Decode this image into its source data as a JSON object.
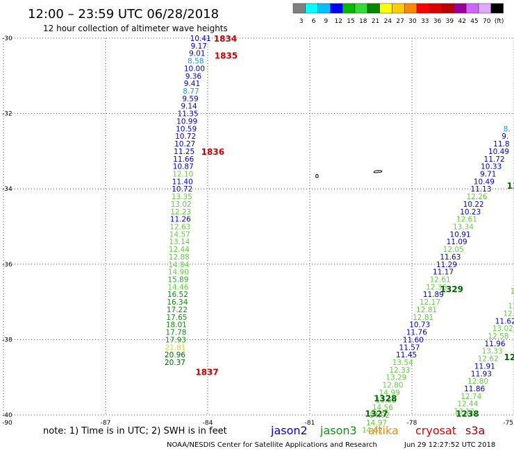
{
  "header": {
    "title": "12:00 – 23:59 UTC 06/28/2018",
    "subtitle": "12 hour collection of altimeter wave heights"
  },
  "legend": {
    "colors": [
      "#808080",
      "#00ffff",
      "#00c0ff",
      "#0000ff",
      "#00bb00",
      "#33dd33",
      "#008800",
      "#ffff00",
      "#ffcc00",
      "#ff8800",
      "#ff0000",
      "#dd0000",
      "#bb0000",
      "#990099",
      "#cc66ff",
      "#ddaaff",
      "#000000"
    ],
    "labels": [
      "3",
      "6",
      "9",
      "12",
      "15",
      "18",
      "21",
      "24",
      "27",
      "30",
      "33",
      "36",
      "39",
      "42",
      "45",
      "70",
      "(ft)"
    ]
  },
  "axes": {
    "lat_labels": [
      "-30",
      "-32",
      "-34",
      "-36",
      "-38",
      "-40"
    ],
    "lon_labels": [
      "-90",
      "-87",
      "-84",
      "-81",
      "-78",
      "-75"
    ]
  },
  "tracks": [
    {
      "name": "track-1",
      "points": [
        {
          "v": "10.41",
          "lon": -84.21,
          "lat": -30.0,
          "c": "#0000cc"
        },
        {
          "v": "9.17",
          "lon": -84.26,
          "lat": -30.2,
          "c": "#0000cc"
        },
        {
          "v": "9.01",
          "lon": -84.31,
          "lat": -30.4,
          "c": "#0000cc"
        },
        {
          "v": "8.58",
          "lon": -84.35,
          "lat": -30.6,
          "c": "#2299cc"
        },
        {
          "v": "10.00",
          "lon": -84.39,
          "lat": -30.8,
          "c": "#0000cc"
        },
        {
          "v": "9.36",
          "lon": -84.42,
          "lat": -31.0,
          "c": "#0000cc"
        },
        {
          "v": "9.41",
          "lon": -84.46,
          "lat": -31.2,
          "c": "#0000cc"
        },
        {
          "v": "8.77",
          "lon": -84.49,
          "lat": -31.4,
          "c": "#2299cc"
        },
        {
          "v": "9.59",
          "lon": -84.51,
          "lat": -31.6,
          "c": "#0000cc"
        },
        {
          "v": "9.14",
          "lon": -84.55,
          "lat": -31.8,
          "c": "#0000cc"
        },
        {
          "v": "11.35",
          "lon": -84.58,
          "lat": -32.0,
          "c": "#0000cc"
        },
        {
          "v": "10.99",
          "lon": -84.61,
          "lat": -32.2,
          "c": "#0000cc"
        },
        {
          "v": "10.59",
          "lon": -84.63,
          "lat": -32.4,
          "c": "#0000cc"
        },
        {
          "v": "10.72",
          "lon": -84.65,
          "lat": -32.6,
          "c": "#0000cc"
        },
        {
          "v": "10.27",
          "lon": -84.67,
          "lat": -32.8,
          "c": "#0000cc"
        },
        {
          "v": "11.25",
          "lon": -84.69,
          "lat": -33.0,
          "c": "#0000cc"
        },
        {
          "v": "11.66",
          "lon": -84.71,
          "lat": -33.2,
          "c": "#0000cc"
        },
        {
          "v": "10.87",
          "lon": -84.72,
          "lat": -33.4,
          "c": "#0000cc"
        },
        {
          "v": "12.10",
          "lon": -84.73,
          "lat": -33.6,
          "c": "#66cc44"
        },
        {
          "v": "11.40",
          "lon": -84.74,
          "lat": -33.8,
          "c": "#0000cc"
        },
        {
          "v": "10.72",
          "lon": -84.75,
          "lat": -34.0,
          "c": "#0000cc"
        },
        {
          "v": "13.35",
          "lon": -84.76,
          "lat": -34.2,
          "c": "#66cc44"
        },
        {
          "v": "13.02",
          "lon": -84.78,
          "lat": -34.4,
          "c": "#66cc44"
        },
        {
          "v": "12.23",
          "lon": -84.79,
          "lat": -34.6,
          "c": "#66cc44"
        },
        {
          "v": "11.26",
          "lon": -84.8,
          "lat": -34.8,
          "c": "#0000cc"
        },
        {
          "v": "12.63",
          "lon": -84.81,
          "lat": -35.0,
          "c": "#66cc44"
        },
        {
          "v": "14.57",
          "lon": -84.82,
          "lat": -35.2,
          "c": "#66cc44"
        },
        {
          "v": "13.14",
          "lon": -84.83,
          "lat": -35.4,
          "c": "#66cc44"
        },
        {
          "v": "12.44",
          "lon": -84.84,
          "lat": -35.6,
          "c": "#66cc44"
        },
        {
          "v": "12.88",
          "lon": -84.84,
          "lat": -35.8,
          "c": "#66cc44"
        },
        {
          "v": "14.84",
          "lon": -84.85,
          "lat": -36.0,
          "c": "#66cc44"
        },
        {
          "v": "14.90",
          "lon": -84.86,
          "lat": -36.2,
          "c": "#66cc44"
        },
        {
          "v": "15.89",
          "lon": -84.87,
          "lat": -36.4,
          "c": "#22aa22"
        },
        {
          "v": "14.46",
          "lon": -84.87,
          "lat": -36.6,
          "c": "#66cc44"
        },
        {
          "v": "16.52",
          "lon": -84.88,
          "lat": -36.8,
          "c": "#118811"
        },
        {
          "v": "16.34",
          "lon": -84.89,
          "lat": -37.0,
          "c": "#118811"
        },
        {
          "v": "17.22",
          "lon": -84.9,
          "lat": -37.2,
          "c": "#118811"
        },
        {
          "v": "17.65",
          "lon": -84.91,
          "lat": -37.4,
          "c": "#118811"
        },
        {
          "v": "18.01",
          "lon": -84.92,
          "lat": -37.6,
          "c": "#118811"
        },
        {
          "v": "17.78",
          "lon": -84.93,
          "lat": -37.8,
          "c": "#118811"
        },
        {
          "v": "17.93",
          "lon": -84.94,
          "lat": -38.0,
          "c": "#118811"
        },
        {
          "v": "21.81",
          "lon": -84.95,
          "lat": -38.2,
          "c": "#dddd00"
        },
        {
          "v": "20.96",
          "lon": -84.96,
          "lat": -38.4,
          "c": "#006600"
        },
        {
          "v": "20.37",
          "lon": -84.96,
          "lat": -38.6,
          "c": "#006600"
        }
      ]
    },
    {
      "name": "track-2",
      "points": [
        {
          "v": "8.",
          "lon": -75.21,
          "lat": -32.4,
          "c": "#2299cc"
        },
        {
          "v": "9.",
          "lon": -75.26,
          "lat": -32.6,
          "c": "#0000cc"
        },
        {
          "v": "11.8",
          "lon": -75.37,
          "lat": -32.8,
          "c": "#0000cc"
        },
        {
          "v": "10.49",
          "lon": -75.45,
          "lat": -33.0,
          "c": "#0000cc"
        },
        {
          "v": "11.72",
          "lon": -75.58,
          "lat": -33.2,
          "c": "#0000cc"
        },
        {
          "v": "10.33",
          "lon": -75.67,
          "lat": -33.4,
          "c": "#0000cc"
        },
        {
          "v": "9.71",
          "lon": -75.76,
          "lat": -33.6,
          "c": "#0000cc"
        },
        {
          "v": "10.49",
          "lon": -75.88,
          "lat": -33.8,
          "c": "#0000cc"
        },
        {
          "v": "11.13",
          "lon": -75.97,
          "lat": -34.0,
          "c": "#0000cc"
        },
        {
          "v": "12.26",
          "lon": -76.09,
          "lat": -34.2,
          "c": "#66cc44"
        },
        {
          "v": "10.22",
          "lon": -76.19,
          "lat": -34.4,
          "c": "#0000cc"
        },
        {
          "v": "10.23",
          "lon": -76.28,
          "lat": -34.6,
          "c": "#0000cc"
        },
        {
          "v": "12.61",
          "lon": -76.39,
          "lat": -34.8,
          "c": "#66cc44"
        },
        {
          "v": "13.34",
          "lon": -76.49,
          "lat": -35.0,
          "c": "#66cc44"
        },
        {
          "v": "10.91",
          "lon": -76.58,
          "lat": -35.2,
          "c": "#0000cc"
        },
        {
          "v": "11.09",
          "lon": -76.68,
          "lat": -35.4,
          "c": "#0000cc"
        },
        {
          "v": "12.05",
          "lon": -76.78,
          "lat": -35.6,
          "c": "#66cc44"
        },
        {
          "v": "11.63",
          "lon": -76.87,
          "lat": -35.8,
          "c": "#0000cc"
        },
        {
          "v": "11.29",
          "lon": -76.98,
          "lat": -36.0,
          "c": "#0000cc"
        },
        {
          "v": "11.17",
          "lon": -77.08,
          "lat": -36.2,
          "c": "#0000cc"
        },
        {
          "v": "12.61",
          "lon": -77.17,
          "lat": -36.4,
          "c": "#66cc44"
        },
        {
          "v": "12.36",
          "lon": -77.28,
          "lat": -36.6,
          "c": "#66cc44"
        },
        {
          "v": "11.89",
          "lon": -77.37,
          "lat": -36.8,
          "c": "#0000cc"
        },
        {
          "v": "12.17",
          "lon": -77.47,
          "lat": -37.0,
          "c": "#66cc44"
        },
        {
          "v": "12.81",
          "lon": -77.57,
          "lat": -37.2,
          "c": "#66cc44"
        },
        {
          "v": "12.81",
          "lon": -77.67,
          "lat": -37.4,
          "c": "#66cc44"
        },
        {
          "v": "10.73",
          "lon": -77.77,
          "lat": -37.6,
          "c": "#0000cc"
        },
        {
          "v": "11.76",
          "lon": -77.86,
          "lat": -37.8,
          "c": "#0000cc"
        },
        {
          "v": "11.60",
          "lon": -77.96,
          "lat": -38.0,
          "c": "#0000cc"
        },
        {
          "v": "11.57",
          "lon": -78.07,
          "lat": -38.2,
          "c": "#0000cc"
        },
        {
          "v": "11.45",
          "lon": -78.16,
          "lat": -38.4,
          "c": "#0000cc"
        },
        {
          "v": "13.54",
          "lon": -78.27,
          "lat": -38.6,
          "c": "#66cc44"
        },
        {
          "v": "12.33",
          "lon": -78.36,
          "lat": -38.8,
          "c": "#66cc44"
        },
        {
          "v": "13.29",
          "lon": -78.46,
          "lat": -39.0,
          "c": "#66cc44"
        },
        {
          "v": "12.80",
          "lon": -78.56,
          "lat": -39.2,
          "c": "#66cc44"
        },
        {
          "v": "14.99",
          "lon": -78.66,
          "lat": -39.4,
          "c": "#66cc44"
        },
        {
          "v": "13.68",
          "lon": -78.76,
          "lat": -39.6,
          "c": "#66cc44"
        },
        {
          "v": "14.56",
          "lon": -78.86,
          "lat": -39.8,
          "c": "#66cc44"
        },
        {
          "v": "14.92",
          "lon": -78.95,
          "lat": -40.0,
          "c": "#66cc44"
        },
        {
          "v": "14.97",
          "lon": -79.04,
          "lat": -40.2,
          "c": "#66cc44"
        },
        {
          "v": "14.62",
          "lon": -79.16,
          "lat": -40.4,
          "c": "#66cc44"
        }
      ]
    },
    {
      "name": "track-3",
      "points": [
        {
          "v": "1",
          "lon": -75.0,
          "lat": -36.7,
          "c": "#66cc44"
        },
        {
          "v": "12",
          "lon": -75.0,
          "lat": -37.1,
          "c": "#66cc44"
        },
        {
          "v": "12.8",
          "lon": -75.08,
          "lat": -37.3,
          "c": "#66cc44"
        },
        {
          "v": "11.62",
          "lon": -75.25,
          "lat": -37.5,
          "c": "#0000cc"
        },
        {
          "v": "13.02",
          "lon": -75.33,
          "lat": -37.7,
          "c": "#66cc44"
        },
        {
          "v": "12.58",
          "lon": -75.46,
          "lat": -37.9,
          "c": "#66cc44"
        },
        {
          "v": "11.96",
          "lon": -75.56,
          "lat": -38.1,
          "c": "#0000cc"
        },
        {
          "v": "13.33",
          "lon": -75.64,
          "lat": -38.3,
          "c": "#66cc44"
        },
        {
          "v": "12.62",
          "lon": -75.76,
          "lat": -38.5,
          "c": "#66cc44"
        },
        {
          "v": "11.91",
          "lon": -75.86,
          "lat": -38.7,
          "c": "#0000cc"
        },
        {
          "v": "11.93",
          "lon": -75.96,
          "lat": -38.9,
          "c": "#0000cc"
        },
        {
          "v": "12.80",
          "lon": -76.06,
          "lat": -39.1,
          "c": "#66cc44"
        },
        {
          "v": "11.86",
          "lon": -76.16,
          "lat": -39.3,
          "c": "#0000cc"
        },
        {
          "v": "12.74",
          "lon": -76.26,
          "lat": -39.5,
          "c": "#66cc44"
        },
        {
          "v": "12.44",
          "lon": -76.36,
          "lat": -39.7,
          "c": "#66cc44"
        },
        {
          "v": "13.12",
          "lon": -76.46,
          "lat": -39.9,
          "c": "#66cc44"
        }
      ]
    }
  ],
  "time_labels": [
    {
      "text": "1834",
      "lon": -83.48,
      "lat": -30.0,
      "c": "#cc0000"
    },
    {
      "text": "1835",
      "lon": -83.46,
      "lat": -30.45,
      "c": "#cc0000"
    },
    {
      "text": "1836",
      "lon": -83.85,
      "lat": -33.0,
      "c": "#cc0000"
    },
    {
      "text": "1837",
      "lon": -84.02,
      "lat": -38.85,
      "c": "#cc0000"
    },
    {
      "text": "1329",
      "lon": -76.83,
      "lat": -36.65,
      "c": "#006600"
    },
    {
      "text": "1328",
      "lon": -78.78,
      "lat": -39.55,
      "c": "#006600"
    },
    {
      "text": "1327",
      "lon": -79.04,
      "lat": -39.95,
      "c": "#006600"
    },
    {
      "text": "1238",
      "lon": -76.37,
      "lat": -39.95,
      "c": "#006600"
    },
    {
      "text": "123",
      "lon": -75.0,
      "lat": -38.45,
      "c": "#006600"
    },
    {
      "text": "13",
      "lon": -75.02,
      "lat": -33.9,
      "c": "#006600"
    }
  ],
  "footer": {
    "note": "note:  1) Time is in UTC;  2) SWH is in feet",
    "satellites": [
      {
        "name": "jason2",
        "color": "#0000cc"
      },
      {
        "name": "jason3",
        "color": "#009900"
      },
      {
        "name": "altika",
        "color": "#ff8800"
      },
      {
        "name": "cryosat",
        "color": "#dd0000"
      },
      {
        "name": "s3a",
        "color": "#aa0000"
      }
    ],
    "credit": "NOAA/NESDIS Center for Satellite Applications and Research",
    "timestamp": "Jun 29 12:27:52 UTC 2018"
  }
}
